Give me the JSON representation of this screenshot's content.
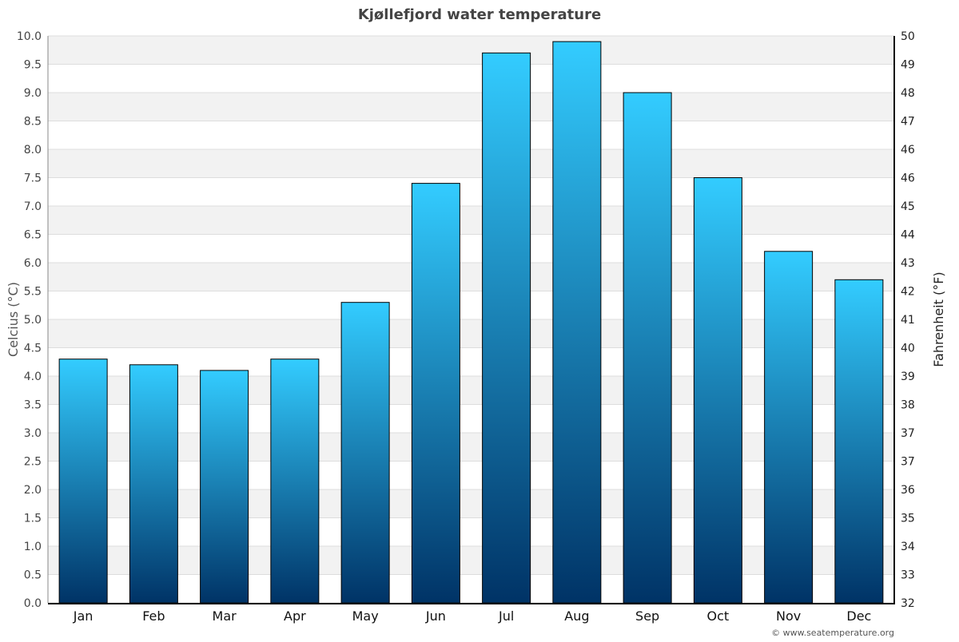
{
  "chart_data": {
    "type": "bar",
    "title": "Kjøllefjord water temperature",
    "categories": [
      "Jan",
      "Feb",
      "Mar",
      "Apr",
      "May",
      "Jun",
      "Jul",
      "Aug",
      "Sep",
      "Oct",
      "Nov",
      "Dec"
    ],
    "values": [
      4.3,
      4.2,
      4.1,
      4.3,
      5.3,
      7.4,
      9.7,
      9.9,
      9.0,
      7.5,
      6.2,
      5.7
    ],
    "ylabel": "Celcius (°C)",
    "ylabel_right": "Fahrenheit (°F)",
    "ylim": [
      0,
      10
    ],
    "yticks": [
      "0.0",
      "0.5",
      "1.0",
      "1.5",
      "2.0",
      "2.5",
      "3.0",
      "3.5",
      "4.0",
      "4.5",
      "5.0",
      "5.5",
      "6.0",
      "6.5",
      "7.0",
      "7.5",
      "8.0",
      "8.5",
      "9.0",
      "9.5",
      "10.0"
    ],
    "yticks_right": [
      "32",
      "33",
      "34",
      "35",
      "36",
      "37",
      "37",
      "38",
      "39",
      "40",
      "41",
      "42",
      "43",
      "44",
      "45",
      "46",
      "46",
      "47",
      "48",
      "49",
      "50"
    ],
    "grid": true,
    "bar_gradient": {
      "top": "#33ccff",
      "bottom": "#003366"
    },
    "band_color": "#f2f2f2"
  },
  "credit": "© www.seatemperature.org"
}
